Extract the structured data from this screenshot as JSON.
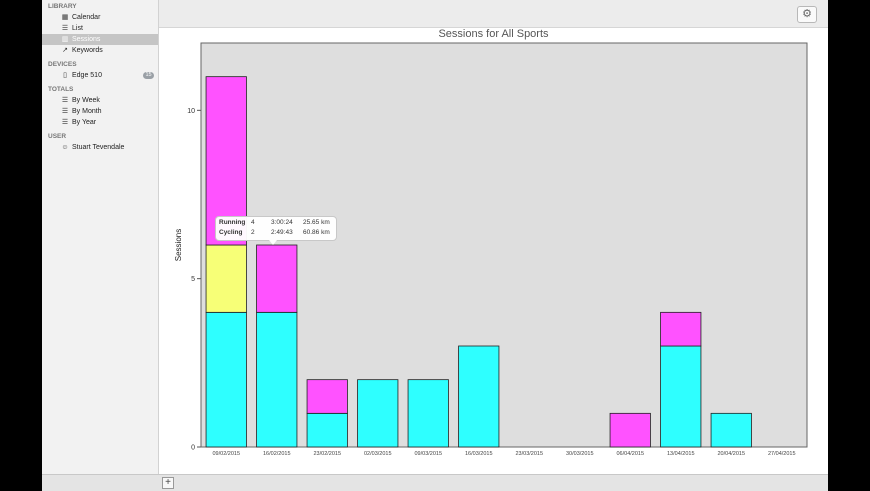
{
  "sidebar": {
    "library_header": "LIBRARY",
    "library": [
      {
        "label": "Calendar",
        "icon": "calendar-icon"
      },
      {
        "label": "List",
        "icon": "list-icon"
      },
      {
        "label": "Sessions",
        "icon": "bar-chart-icon",
        "selected": true
      },
      {
        "label": "Keywords",
        "icon": "keyword-chart-icon"
      }
    ],
    "devices_header": "DEVICES",
    "devices": [
      {
        "label": "Edge 510",
        "icon": "device-icon",
        "badge": "15"
      }
    ],
    "totals_header": "TOTALS",
    "totals": [
      {
        "label": "By Week",
        "icon": "table-icon"
      },
      {
        "label": "By Month",
        "icon": "table-icon"
      },
      {
        "label": "By Year",
        "icon": "table-icon"
      }
    ],
    "user_header": "USER",
    "user": [
      {
        "label": "Stuart Tevendale",
        "icon": "user-icon"
      }
    ]
  },
  "toolbar": {
    "add_label": "+",
    "settings_icon": "gear-icon"
  },
  "tooltip": {
    "rows": [
      {
        "sport": "Running",
        "count": "4",
        "time": "3:00:24",
        "distance": "25.65 km"
      },
      {
        "sport": "Cycling",
        "count": "2",
        "time": "2:49:43",
        "distance": "60.86 km"
      }
    ]
  },
  "chart_data": {
    "type": "bar",
    "title": "Sessions for All Sports",
    "ylabel": "Sessions",
    "xlabel": "",
    "ylim": [
      0,
      12
    ],
    "yticks": [
      0,
      5,
      10
    ],
    "stacked": true,
    "categories": [
      "09/02/2015",
      "16/02/2015",
      "23/02/2015",
      "02/03/2015",
      "09/03/2015",
      "16/03/2015",
      "23/03/2015",
      "30/03/2015",
      "06/04/2015",
      "13/04/2015",
      "20/04/2015",
      "27/04/2015"
    ],
    "series": [
      {
        "color": "#2effff",
        "values": [
          4,
          4,
          1,
          2,
          2,
          3,
          0,
          0,
          0,
          3,
          1,
          0
        ]
      },
      {
        "color": "#f7ff77",
        "values": [
          2,
          0,
          0,
          0,
          0,
          0,
          0,
          0,
          0,
          0,
          0,
          0
        ]
      },
      {
        "color": "#ff52ff",
        "values": [
          5,
          2,
          1,
          0,
          0,
          0,
          0,
          0,
          1,
          1,
          0,
          0
        ]
      }
    ],
    "plot_background": "#dedede"
  }
}
